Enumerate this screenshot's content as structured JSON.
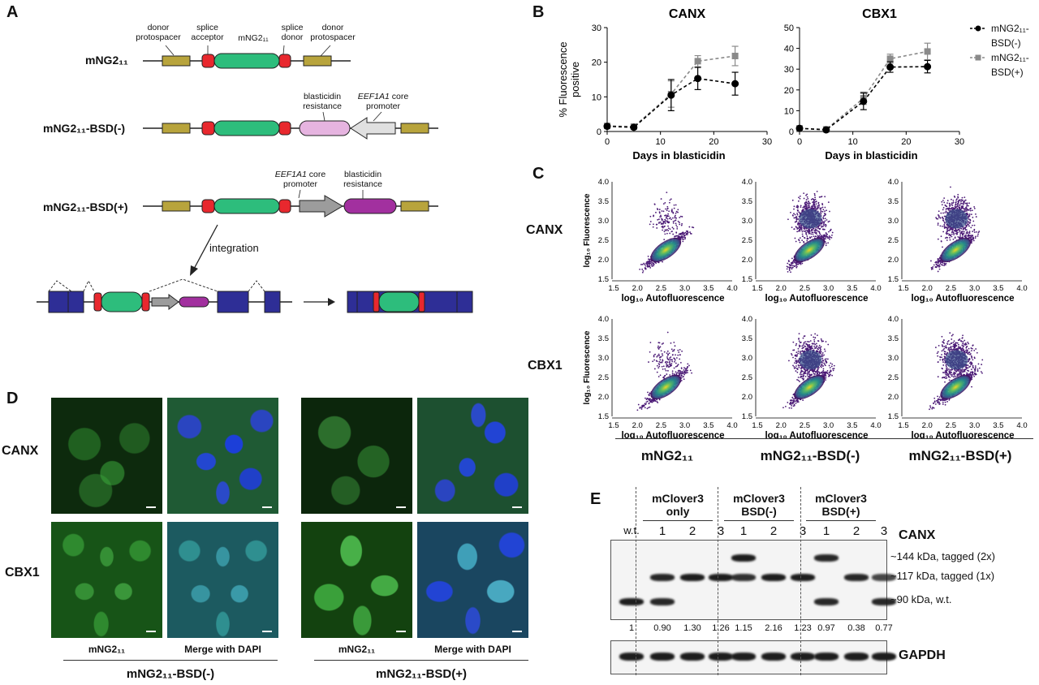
{
  "panelA": {
    "label": "A",
    "constructs": [
      {
        "name": "mNG2₁₁"
      },
      {
        "name": "mNG2₁₁-BSD(-)"
      },
      {
        "name": "mNG2₁₁-BSD(+)"
      }
    ],
    "top_labels": {
      "donor_protospacer_left": "donor protospacer",
      "splice_acceptor": "splice acceptor",
      "mng": "mNG2₁₁",
      "splice_donor": "splice donor",
      "donor_protospacer_right": "donor protospacer"
    },
    "bsd_minus_labels": {
      "blasticidin": "blasticidin resistance",
      "promoter_italic": "EEF1A1",
      "promoter_rest": "core promoter"
    },
    "bsd_plus_labels": {
      "promoter_italic": "EEF1A1",
      "promoter_rest": "core promoter",
      "blasticidin": "blasticidin resistance"
    },
    "integration": "integration"
  },
  "panelB": {
    "label": "B",
    "ylabel": "% Fluorescence positive",
    "xlabel": "Days in blasticidin",
    "legend": [
      {
        "name": "mNG2₁₁-BSD(-)",
        "color": "#000000"
      },
      {
        "name": "mNG2₁₁-BSD(+)",
        "color": "#8a8a8a"
      }
    ]
  },
  "chart_data": [
    {
      "type": "line",
      "title": "CANX",
      "xlabel": "Days in blasticidin",
      "ylabel": "% Fluorescence positive",
      "xlim": [
        0,
        30
      ],
      "ylim": [
        0,
        30
      ],
      "xticks": [
        0,
        10,
        20,
        30
      ],
      "yticks": [
        0,
        10,
        20,
        30
      ],
      "x": [
        0,
        5,
        12,
        17,
        24
      ],
      "series": [
        {
          "name": "mNG2₁₁-BSD(-)",
          "values": [
            1.5,
            1.2,
            10.5,
            15.3,
            13.8
          ],
          "errors": [
            0.5,
            0.5,
            4.5,
            3.2,
            3.3
          ]
        },
        {
          "name": "mNG2₁₁-BSD(+)",
          "values": [
            1.6,
            1.4,
            10.8,
            20.3,
            21.8
          ],
          "errors": [
            0.5,
            0.5,
            3.8,
            1.6,
            2.8
          ]
        }
      ]
    },
    {
      "type": "line",
      "title": "CBX1",
      "xlabel": "Days in blasticidin",
      "ylabel": "",
      "xlim": [
        0,
        30
      ],
      "ylim": [
        0,
        50
      ],
      "xticks": [
        0,
        10,
        20,
        30
      ],
      "yticks": [
        0,
        10,
        20,
        30,
        40,
        50
      ],
      "x": [
        0,
        5,
        12,
        17,
        24
      ],
      "series": [
        {
          "name": "mNG2₁₁-BSD(-)",
          "values": [
            1.5,
            0.8,
            14.5,
            31.0,
            31.2
          ],
          "errors": [
            0.6,
            0.5,
            4.0,
            2.5,
            3.0
          ]
        },
        {
          "name": "mNG2₁₁-BSD(+)",
          "values": [
            1.5,
            1.0,
            16.0,
            35.0,
            38.5
          ],
          "errors": [
            0.6,
            0.5,
            3.0,
            2.2,
            4.0
          ]
        }
      ]
    }
  ],
  "panelC": {
    "label": "C",
    "rows": [
      "CANX",
      "CBX1"
    ],
    "cols": [
      "mNG2₁₁",
      "mNG2₁₁-BSD(-)",
      "mNG2₁₁-BSD(+)"
    ],
    "xlabel": "log₁₀ Autofluorescence",
    "ylabel": "log₁₀ Fluorescence",
    "xticks": [
      "1.5",
      "2.0",
      "2.5",
      "3.0",
      "3.5",
      "4.0"
    ],
    "yticks": [
      "4.0",
      "3.5",
      "3.0",
      "2.5",
      "2.0",
      "1.5"
    ]
  },
  "panelD": {
    "label": "D",
    "rows": [
      "CANX",
      "CBX1"
    ],
    "col_labels": [
      "mNG2₁₁",
      "Merge with DAPI",
      "mNG2₁₁",
      "Merge with DAPI"
    ],
    "group_labels": [
      "mNG2₁₁-BSD(-)",
      "mNG2₁₁-BSD(+)"
    ]
  },
  "panelE": {
    "label": "E",
    "groups": [
      {
        "line1": "mClover3",
        "line2": "only"
      },
      {
        "line1": "mClover3",
        "line2": "BSD(-)"
      },
      {
        "line1": "mClover3",
        "line2": "BSD(+)"
      }
    ],
    "lanes": [
      "w.t.",
      "1",
      "2",
      "3",
      "1",
      "2",
      "3",
      "1",
      "2",
      "3"
    ],
    "quant": [
      "1",
      "0.90",
      "1.30",
      "1.26",
      "1.15",
      "2.16",
      "1.23",
      "0.97",
      "0.38",
      "0.77"
    ],
    "target": "CANX",
    "band_labels": [
      "~144 kDa, tagged (2x)",
      "~117 kDa, tagged (1x)",
      "~90 kDa, w.t."
    ],
    "loading": "GAPDH"
  }
}
